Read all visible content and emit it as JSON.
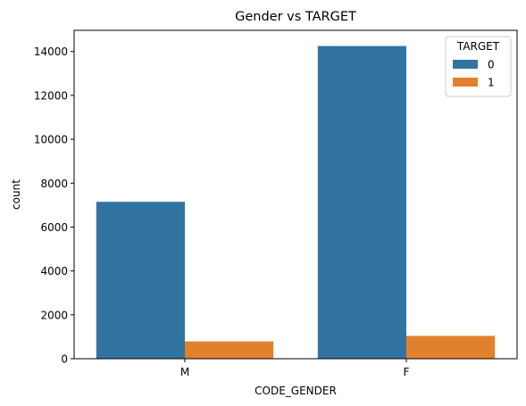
{
  "chart_data": {
    "type": "bar",
    "title": "Gender vs TARGET",
    "xlabel": "CODE_GENDER",
    "ylabel": "count",
    "categories": [
      "M",
      "F"
    ],
    "series": [
      {
        "name": "0",
        "color": "#3274a1",
        "values": [
          7150,
          14250
        ]
      },
      {
        "name": "1",
        "color": "#e1812c",
        "values": [
          790,
          1040
        ]
      }
    ],
    "legend_title": "TARGET",
    "legend_position": "top-right",
    "ylim": [
      0,
      14964
    ],
    "yticks": [
      0,
      2000,
      4000,
      6000,
      8000,
      10000,
      12000,
      14000
    ],
    "ytick_labels": [
      "0",
      "2000",
      "4000",
      "6000",
      "8000",
      "10000",
      "12000",
      "14000"
    ],
    "grid": false
  }
}
